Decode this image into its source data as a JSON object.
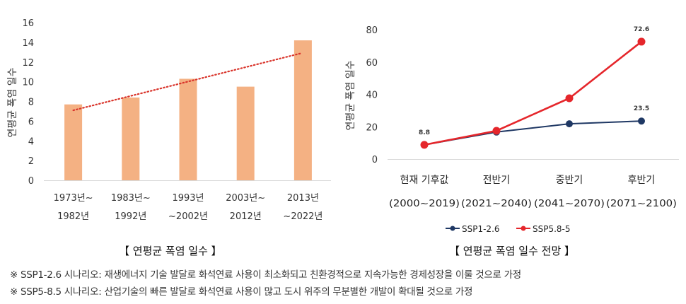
{
  "chart_data": [
    {
      "type": "bar",
      "title": "【 연평균 폭염 일수 】",
      "ylabel": "연평균 폭염 일수",
      "xlabel": "",
      "categories": [
        [
          "1973년~",
          "1982년"
        ],
        [
          "1983년~",
          "1992년"
        ],
        [
          "1993년",
          "~2002년"
        ],
        [
          "2003년~",
          "2012년"
        ],
        [
          "2013년",
          "~2022년"
        ]
      ],
      "values": [
        7.7,
        8.4,
        10.3,
        9.5,
        14.2
      ],
      "ylim": [
        0,
        16
      ],
      "yticks": [
        0,
        2,
        4,
        6,
        8,
        10,
        12,
        14,
        16
      ],
      "trendline": {
        "type": "linear",
        "style": "dotted",
        "start": 7.1,
        "end": 12.9
      },
      "grid": false,
      "colors": {
        "bar": "#F4B183",
        "trend": "#D9342B",
        "axis": "#D9D9D9"
      }
    },
    {
      "type": "line",
      "title": "【 연평균 폭염 일수 전망 】",
      "ylabel": "연평균 폭염 일수",
      "xlabel": "",
      "categories": [
        [
          "현재 기후값",
          "(2000~2019)"
        ],
        [
          "전반기",
          "(2021~2040)"
        ],
        [
          "중반기",
          "(2041~2070)"
        ],
        [
          "후반기",
          "(2071~2100)"
        ]
      ],
      "series": [
        {
          "name": "SSP1-2.6",
          "values": [
            8.8,
            16.7,
            21.8,
            23.5
          ],
          "color": "#1F3864"
        },
        {
          "name": "SSP5.8-5",
          "values": [
            8.8,
            17.5,
            37.6,
            72.6
          ],
          "color": "#E5262B"
        }
      ],
      "data_labels": [
        {
          "series": 1,
          "index": 0,
          "text": "8.8"
        },
        {
          "series": 1,
          "index": 3,
          "text": "72.6"
        },
        {
          "series": 0,
          "index": 3,
          "text": "23.5"
        }
      ],
      "ylim": [
        0,
        80
      ],
      "yticks": [
        0,
        20,
        40,
        60,
        80
      ],
      "grid": false,
      "legend": "bottom"
    }
  ],
  "notes": [
    "※ SSP1-2.6 시나리오: 재생에너지 기술 발달로 화석연료 사용이 최소화되고 친환경적으로 지속가능한 경제성장을 이룰 것으로 가정",
    "※ SSP5-8.5 시나리오: 산업기술의 빠른 발달로 화석연료 사용이 많고 도시 위주의 무분별한 개발이  확대될 것으로 가정"
  ]
}
